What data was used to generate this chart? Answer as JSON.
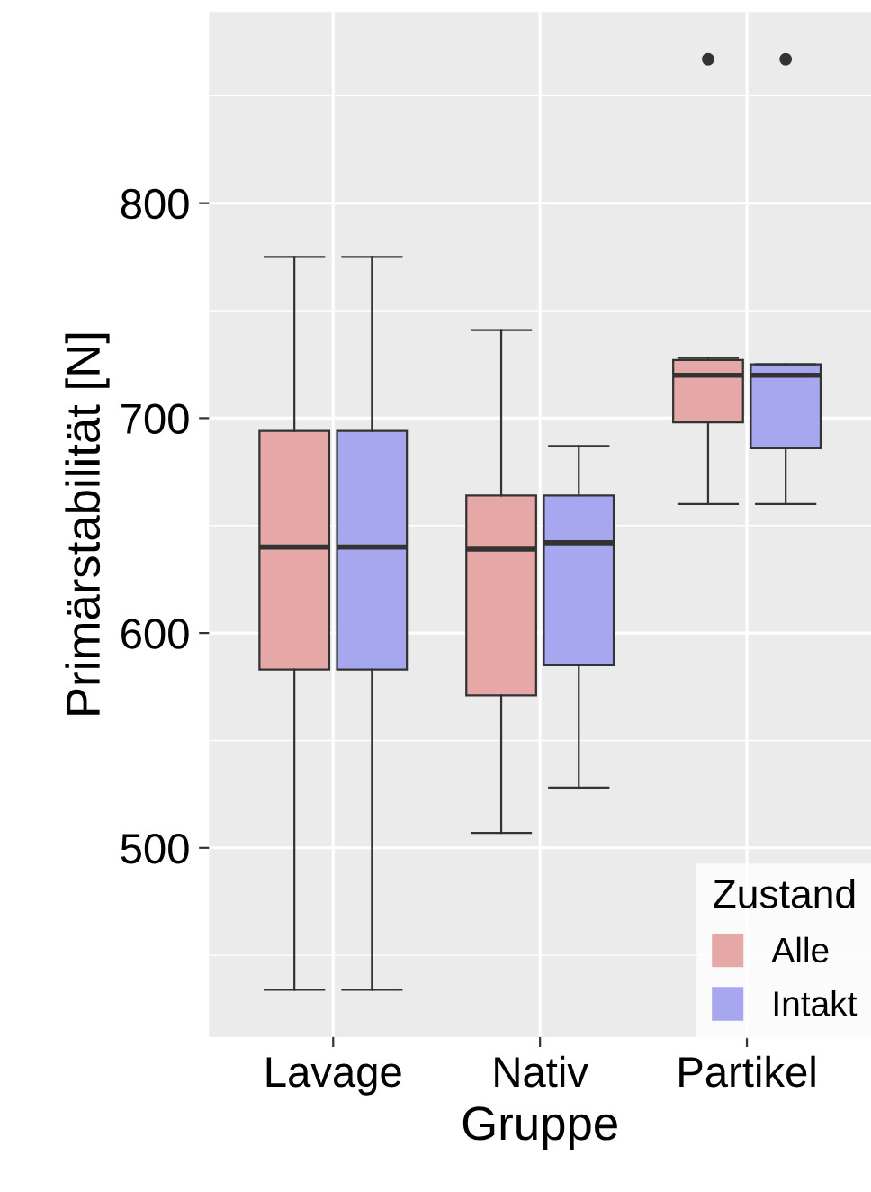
{
  "chart_data": {
    "type": "box",
    "xlabel": "Gruppe",
    "ylabel": "Primärstabilität [N]",
    "legend_title": "Zustand",
    "categories": [
      "Lavage",
      "Nativ",
      "Partikel"
    ],
    "series": [
      {
        "name": "Alle",
        "color": "#e6a7a7",
        "boxes": [
          {
            "low": 434,
            "q1": 583,
            "median": 640,
            "q3": 694,
            "high": 775
          },
          {
            "low": 507,
            "q1": 571,
            "median": 639,
            "q3": 664,
            "high": 741
          },
          {
            "low": 660,
            "q1": 698,
            "median": 720,
            "q3": 727,
            "high": 728,
            "outliers": [
              867
            ]
          }
        ]
      },
      {
        "name": "Intakt",
        "color": "#a7a7f0",
        "boxes": [
          {
            "low": 434,
            "q1": 583,
            "median": 640,
            "q3": 694,
            "high": 775
          },
          {
            "low": 528,
            "q1": 585,
            "median": 642,
            "q3": 664,
            "high": 687
          },
          {
            "low": 660,
            "q1": 686,
            "median": 720,
            "q3": 725,
            "high": 725,
            "outliers": [
              867
            ]
          }
        ]
      }
    ],
    "ylim": [
      412,
      889
    ],
    "yticks": [
      500,
      600,
      700,
      800
    ],
    "grid": true,
    "legend": "bottom right"
  }
}
